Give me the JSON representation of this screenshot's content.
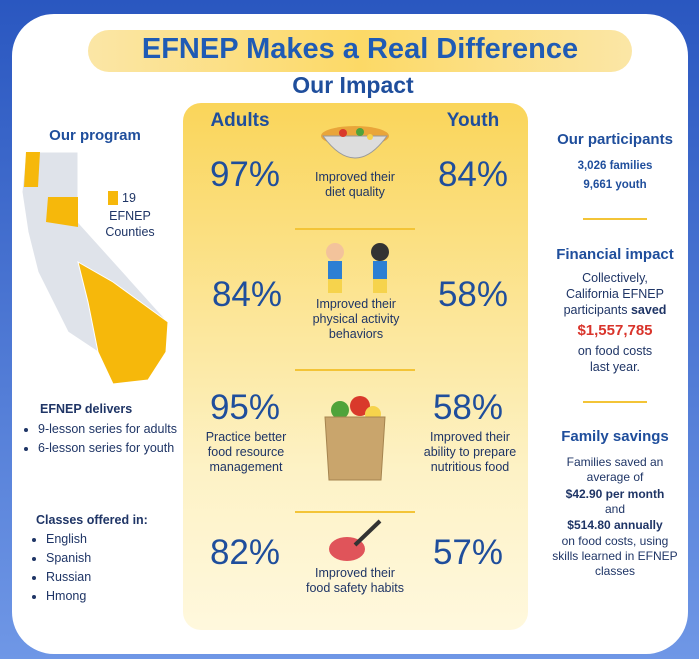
{
  "header": {
    "title": "EFNEP Makes a Real Difference",
    "subtitle": "Our Impact"
  },
  "program": {
    "title": "Our program",
    "counties_number": "19",
    "counties_label": "EFNEP Counties"
  },
  "delivers": {
    "title": "EFNEP delivers",
    "items": [
      "9-lesson series for adults",
      "6-lesson series for youth"
    ]
  },
  "classes": {
    "title": "Classes offered in:",
    "items": [
      "English",
      "Spanish",
      "Russian",
      "Hmong"
    ]
  },
  "impact": {
    "adults_label": "Adults",
    "youth_label": "Youth",
    "rows": [
      {
        "adults": "97%",
        "youth": "84%",
        "label": "Improved their diet quality"
      },
      {
        "adults": "84%",
        "youth": "58%",
        "label": "Improved their physical activity behaviors"
      },
      {
        "adults": "95%",
        "youth": "58%",
        "label": "Practice better food resource management",
        "youth_label": "Improved their ability to prepare nutritious food"
      },
      {
        "adults": "82%",
        "youth": "57%",
        "label": "Improved their food safety habits"
      }
    ]
  },
  "participants": {
    "title": "Our participants",
    "families": "3,026 families",
    "youth": "9,661 youth"
  },
  "financial": {
    "title": "Financial impact",
    "text_1": "Collectively, California EFNEP participants",
    "emphasis": "saved",
    "amount": "$1,557,785",
    "text_2": "on food costs last year."
  },
  "savings": {
    "title": "Family savings",
    "text_1": "Families saved an average of",
    "monthly": "$42.90 per month",
    "joiner": "and",
    "annual": "$514.80 annually",
    "text_2": "on food costs, using skills learned in EFNEP classes"
  }
}
